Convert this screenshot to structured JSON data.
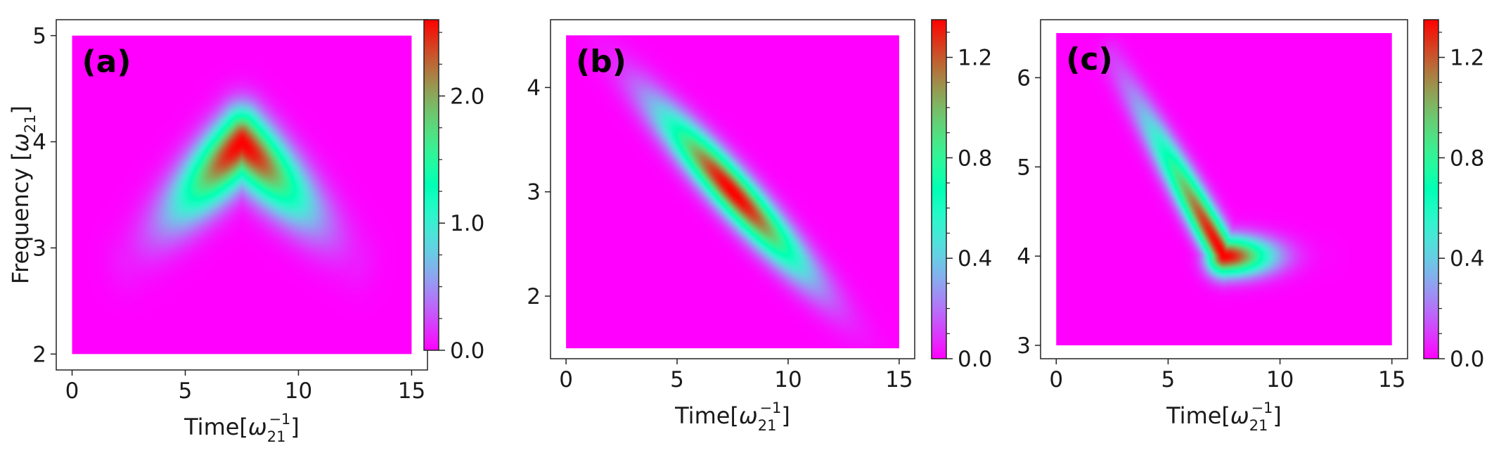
{
  "figure": {
    "panels": [
      "a",
      "b",
      "c"
    ]
  },
  "chart_data": [
    {
      "type": "heatmap",
      "panel_label": "(a)",
      "title": "",
      "xlabel": "Time",
      "xlabel_unit_base": "ω",
      "xlabel_unit_sub": "21",
      "xlabel_unit_sup": "−1",
      "ylabel": "Frequency",
      "ylabel_unit_base": "ω",
      "ylabel_unit_sub": "21",
      "xlim": [
        -0.7,
        15.7
      ],
      "ylim": [
        1.85,
        5.15
      ],
      "data_extent_x": [
        0,
        15
      ],
      "data_extent_y": [
        2,
        5
      ],
      "xticks": [
        0,
        5,
        10,
        15
      ],
      "xtick_labels": [
        "0",
        "5",
        "10",
        "15"
      ],
      "yticks": [
        2,
        3,
        4,
        5
      ],
      "ytick_labels": [
        "2",
        "3",
        "4",
        "5"
      ],
      "colormap": "rainbow",
      "colorbar": {
        "min": 0.0,
        "max": 2.6,
        "ticks": [
          0.0,
          1.0,
          2.0
        ],
        "tick_labels": [
          "0.0",
          "1.0",
          "2.0"
        ],
        "minor_ticks": [
          0.25,
          0.5,
          0.75,
          1.25,
          1.5,
          1.75,
          2.25,
          2.5
        ]
      },
      "features": [
        {
          "shape": "chevron",
          "apex_time": 7.5,
          "apex_frequency": 4.0,
          "left_end_time": 2.5,
          "left_end_frequency": 2.9,
          "right_end_time": 12.5,
          "right_end_frequency": 2.9,
          "peak": 2.6
        }
      ]
    },
    {
      "type": "heatmap",
      "panel_label": "(b)",
      "title": "",
      "xlabel": "Time",
      "xlabel_unit_base": "ω",
      "xlabel_unit_sub": "21",
      "xlabel_unit_sup": "−1",
      "ylabel": "",
      "xlim": [
        -0.7,
        15.7
      ],
      "ylim": [
        1.4,
        4.65
      ],
      "data_extent_x": [
        0,
        15
      ],
      "data_extent_y": [
        1.5,
        4.5
      ],
      "xticks": [
        0,
        5,
        10,
        15
      ],
      "xtick_labels": [
        "0",
        "5",
        "10",
        "15"
      ],
      "yticks": [
        2,
        3,
        4
      ],
      "ytick_labels": [
        "2",
        "3",
        "4"
      ],
      "colormap": "rainbow",
      "colorbar": {
        "min": 0.0,
        "max": 1.35,
        "ticks": [
          0.0,
          0.4,
          0.8,
          1.2
        ],
        "tick_labels": [
          "0.0",
          "0.4",
          "0.8",
          "1.2"
        ],
        "minor_ticks": [
          0.1,
          0.2,
          0.3,
          0.5,
          0.6,
          0.7,
          0.9,
          1.0,
          1.1,
          1.3
        ]
      },
      "features": [
        {
          "shape": "tilted-ellipse",
          "center_time": 7.5,
          "center_frequency": 3.0,
          "slope": -0.22,
          "peak": 1.35
        }
      ]
    },
    {
      "type": "heatmap",
      "panel_label": "(c)",
      "title": "",
      "xlabel": "Time",
      "xlabel_unit_base": "ω",
      "xlabel_unit_sub": "21",
      "xlabel_unit_sup": "−1",
      "ylabel": "",
      "xlim": [
        -0.7,
        15.7
      ],
      "ylim": [
        2.85,
        6.65
      ],
      "data_extent_x": [
        0,
        15
      ],
      "data_extent_y": [
        3,
        6.5
      ],
      "xticks": [
        0,
        5,
        10,
        15
      ],
      "xtick_labels": [
        "0",
        "5",
        "10",
        "15"
      ],
      "yticks": [
        3,
        4,
        5,
        6
      ],
      "ytick_labels": [
        "3",
        "4",
        "5",
        "6"
      ],
      "colormap": "rainbow",
      "colorbar": {
        "min": 0.0,
        "max": 1.35,
        "ticks": [
          0.0,
          0.4,
          0.8,
          1.2
        ],
        "tick_labels": [
          "0.0",
          "0.4",
          "0.8",
          "1.2"
        ],
        "minor_ticks": [
          0.1,
          0.2,
          0.3,
          0.5,
          0.6,
          0.7,
          0.9,
          1.0,
          1.1,
          1.3
        ]
      },
      "features": [
        {
          "shape": "chirp-then-constant",
          "start_time": 2.5,
          "start_frequency": 6.2,
          "knee_time": 7.5,
          "knee_frequency": 4.0,
          "end_time": 12.0,
          "end_frequency": 4.0,
          "peak": 1.35
        }
      ]
    }
  ]
}
